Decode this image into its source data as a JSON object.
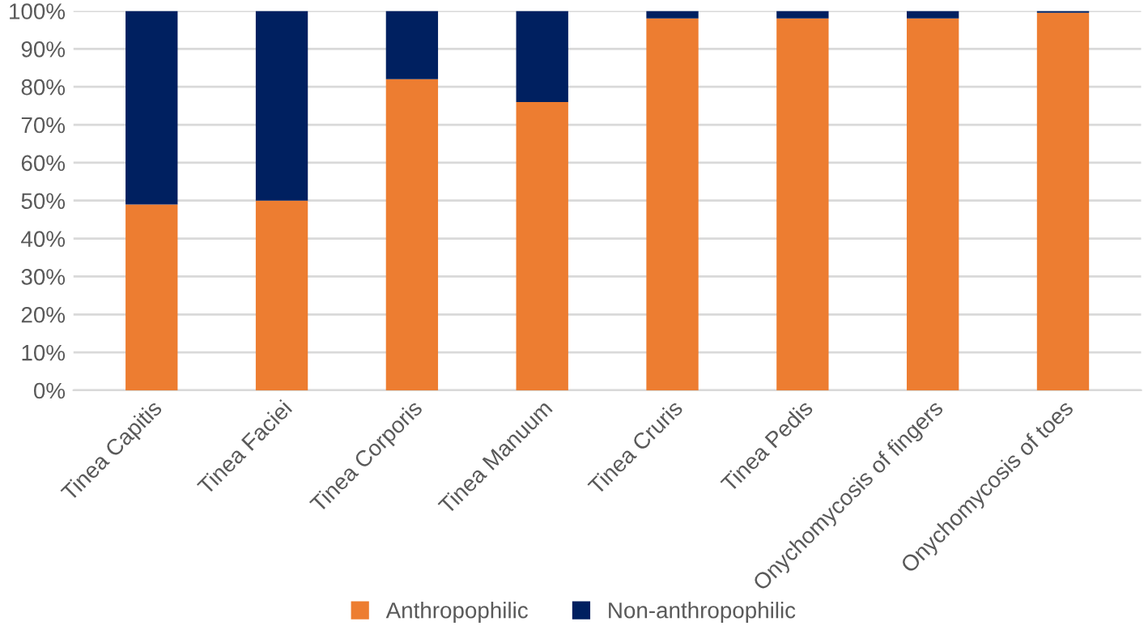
{
  "chart_data": {
    "type": "bar",
    "stacked": true,
    "categories": [
      "Tinea Capitis",
      "Tinea Faciei",
      "Tinea Corporis",
      "Tinea Manuum",
      "Tinea Cruris",
      "Tinea Pedis",
      "Onychomycosis of fingers",
      "Onychomycosis of toes"
    ],
    "series": [
      {
        "name": "Anthropophilic",
        "color": "#ed7d31",
        "values": [
          49,
          50,
          82,
          76,
          98,
          98,
          98,
          99.5
        ]
      },
      {
        "name": "Non-anthropophilic",
        "color": "#002060",
        "values": [
          51,
          50,
          18,
          24,
          2,
          2,
          2,
          0.5
        ]
      }
    ],
    "ylim": [
      0,
      100
    ],
    "yticks": [
      {
        "value": 0,
        "label": "0%"
      },
      {
        "value": 10,
        "label": "10%"
      },
      {
        "value": 20,
        "label": "20%"
      },
      {
        "value": 30,
        "label": "30%"
      },
      {
        "value": 40,
        "label": "40%"
      },
      {
        "value": 50,
        "label": "50%"
      },
      {
        "value": 60,
        "label": "60%"
      },
      {
        "value": 70,
        "label": "70%"
      },
      {
        "value": 80,
        "label": "80%"
      },
      {
        "value": 90,
        "label": "90%"
      },
      {
        "value": 100,
        "label": "100%"
      }
    ],
    "grid": "y",
    "legend": "bottom"
  }
}
